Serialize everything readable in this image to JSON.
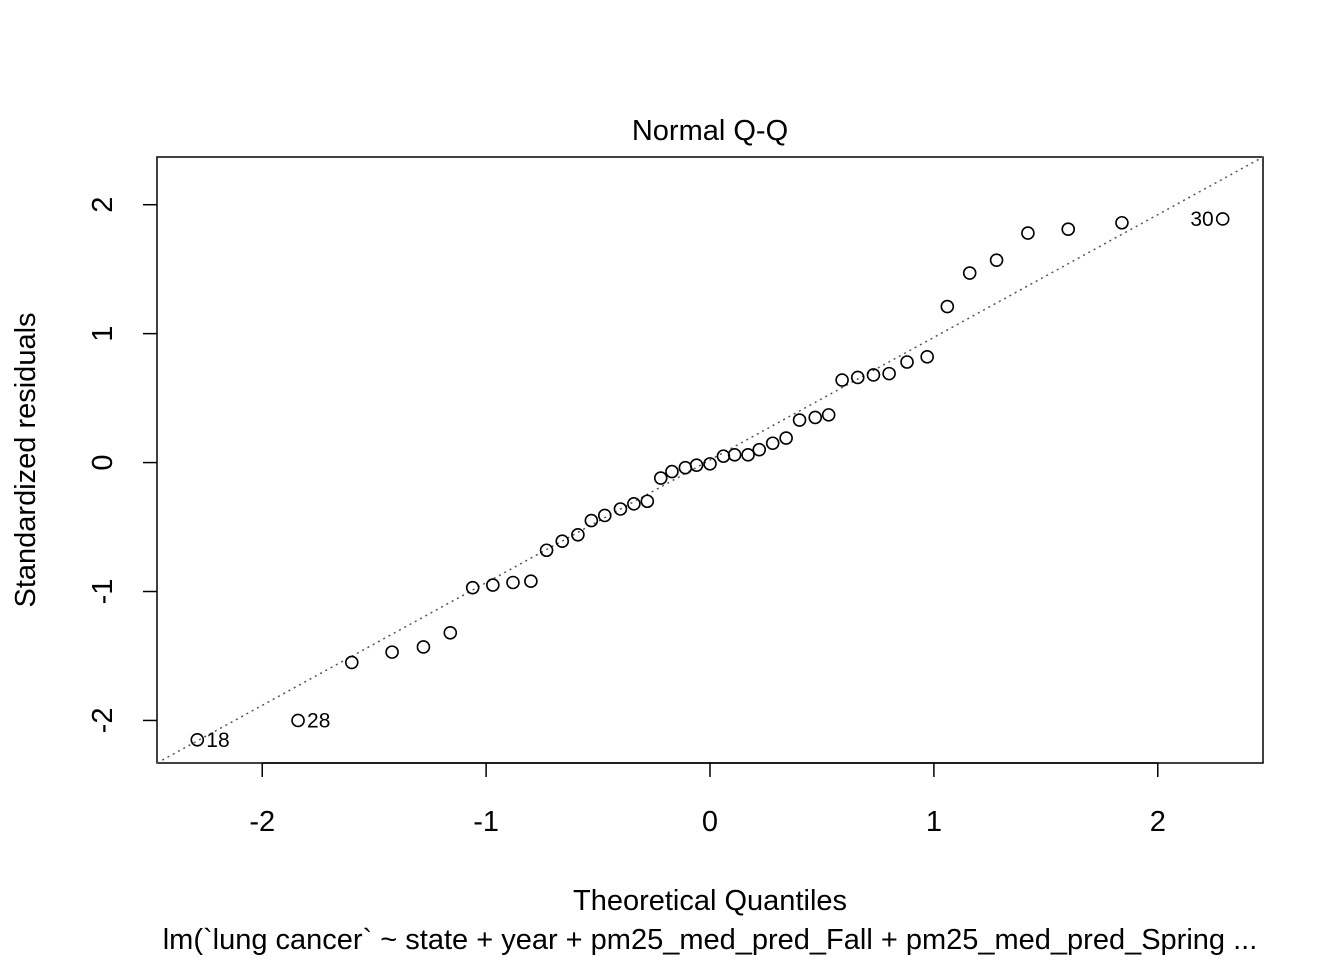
{
  "chart_data": {
    "type": "scatter",
    "title": "Normal Q-Q",
    "xlabel": "Theoretical Quantiles",
    "ylabel": "Standardized residuals",
    "subtitle": "lm(`lung cancer` ~ state + year + pm25_med_pred_Fall + pm25_med_pred_Spring ...",
    "xlim": [
      -2.47,
      2.47
    ],
    "ylim": [
      -2.33,
      2.37
    ],
    "x_ticks": [
      -2,
      -1,
      0,
      1,
      2
    ],
    "x_tick_labels": [
      "-2",
      "-1",
      "0",
      "1",
      "2"
    ],
    "y_ticks": [
      -2,
      -1,
      0,
      1,
      2
    ],
    "y_tick_labels": [
      "-2",
      "-1",
      "0",
      "1",
      "2"
    ],
    "grid": false,
    "reference_line": {
      "style": "dotted",
      "color": "#555555",
      "x": [
        -2.47,
        2.47
      ],
      "y": [
        -2.33,
        2.37
      ]
    },
    "points": [
      {
        "x": -2.29,
        "y": -2.15,
        "label": "18"
      },
      {
        "x": -1.84,
        "y": -2.0,
        "label": "28"
      },
      {
        "x": -1.6,
        "y": -1.55
      },
      {
        "x": -1.42,
        "y": -1.47
      },
      {
        "x": -1.28,
        "y": -1.43
      },
      {
        "x": -1.16,
        "y": -1.32
      },
      {
        "x": -1.06,
        "y": -0.97
      },
      {
        "x": -0.97,
        "y": -0.95
      },
      {
        "x": -0.88,
        "y": -0.93
      },
      {
        "x": -0.8,
        "y": -0.92
      },
      {
        "x": -0.73,
        "y": -0.68
      },
      {
        "x": -0.66,
        "y": -0.61
      },
      {
        "x": -0.59,
        "y": -0.56
      },
      {
        "x": -0.53,
        "y": -0.45
      },
      {
        "x": -0.47,
        "y": -0.41
      },
      {
        "x": -0.4,
        "y": -0.36
      },
      {
        "x": -0.34,
        "y": -0.32
      },
      {
        "x": -0.28,
        "y": -0.3
      },
      {
        "x": -0.22,
        "y": -0.12
      },
      {
        "x": -0.17,
        "y": -0.07
      },
      {
        "x": -0.11,
        "y": -0.04
      },
      {
        "x": -0.06,
        "y": -0.02
      },
      {
        "x": 0.0,
        "y": -0.01
      },
      {
        "x": 0.06,
        "y": 0.05
      },
      {
        "x": 0.11,
        "y": 0.06
      },
      {
        "x": 0.17,
        "y": 0.06
      },
      {
        "x": 0.22,
        "y": 0.1
      },
      {
        "x": 0.28,
        "y": 0.15
      },
      {
        "x": 0.34,
        "y": 0.19
      },
      {
        "x": 0.4,
        "y": 0.33
      },
      {
        "x": 0.47,
        "y": 0.35
      },
      {
        "x": 0.53,
        "y": 0.37
      },
      {
        "x": 0.59,
        "y": 0.64
      },
      {
        "x": 0.66,
        "y": 0.66
      },
      {
        "x": 0.73,
        "y": 0.68
      },
      {
        "x": 0.8,
        "y": 0.69
      },
      {
        "x": 0.88,
        "y": 0.78
      },
      {
        "x": 0.97,
        "y": 0.82
      },
      {
        "x": 1.06,
        "y": 1.21
      },
      {
        "x": 1.16,
        "y": 1.47
      },
      {
        "x": 1.28,
        "y": 1.57
      },
      {
        "x": 1.42,
        "y": 1.78
      },
      {
        "x": 1.6,
        "y": 1.81
      },
      {
        "x": 1.84,
        "y": 1.86
      },
      {
        "x": 2.29,
        "y": 1.89,
        "label": "30"
      }
    ]
  }
}
